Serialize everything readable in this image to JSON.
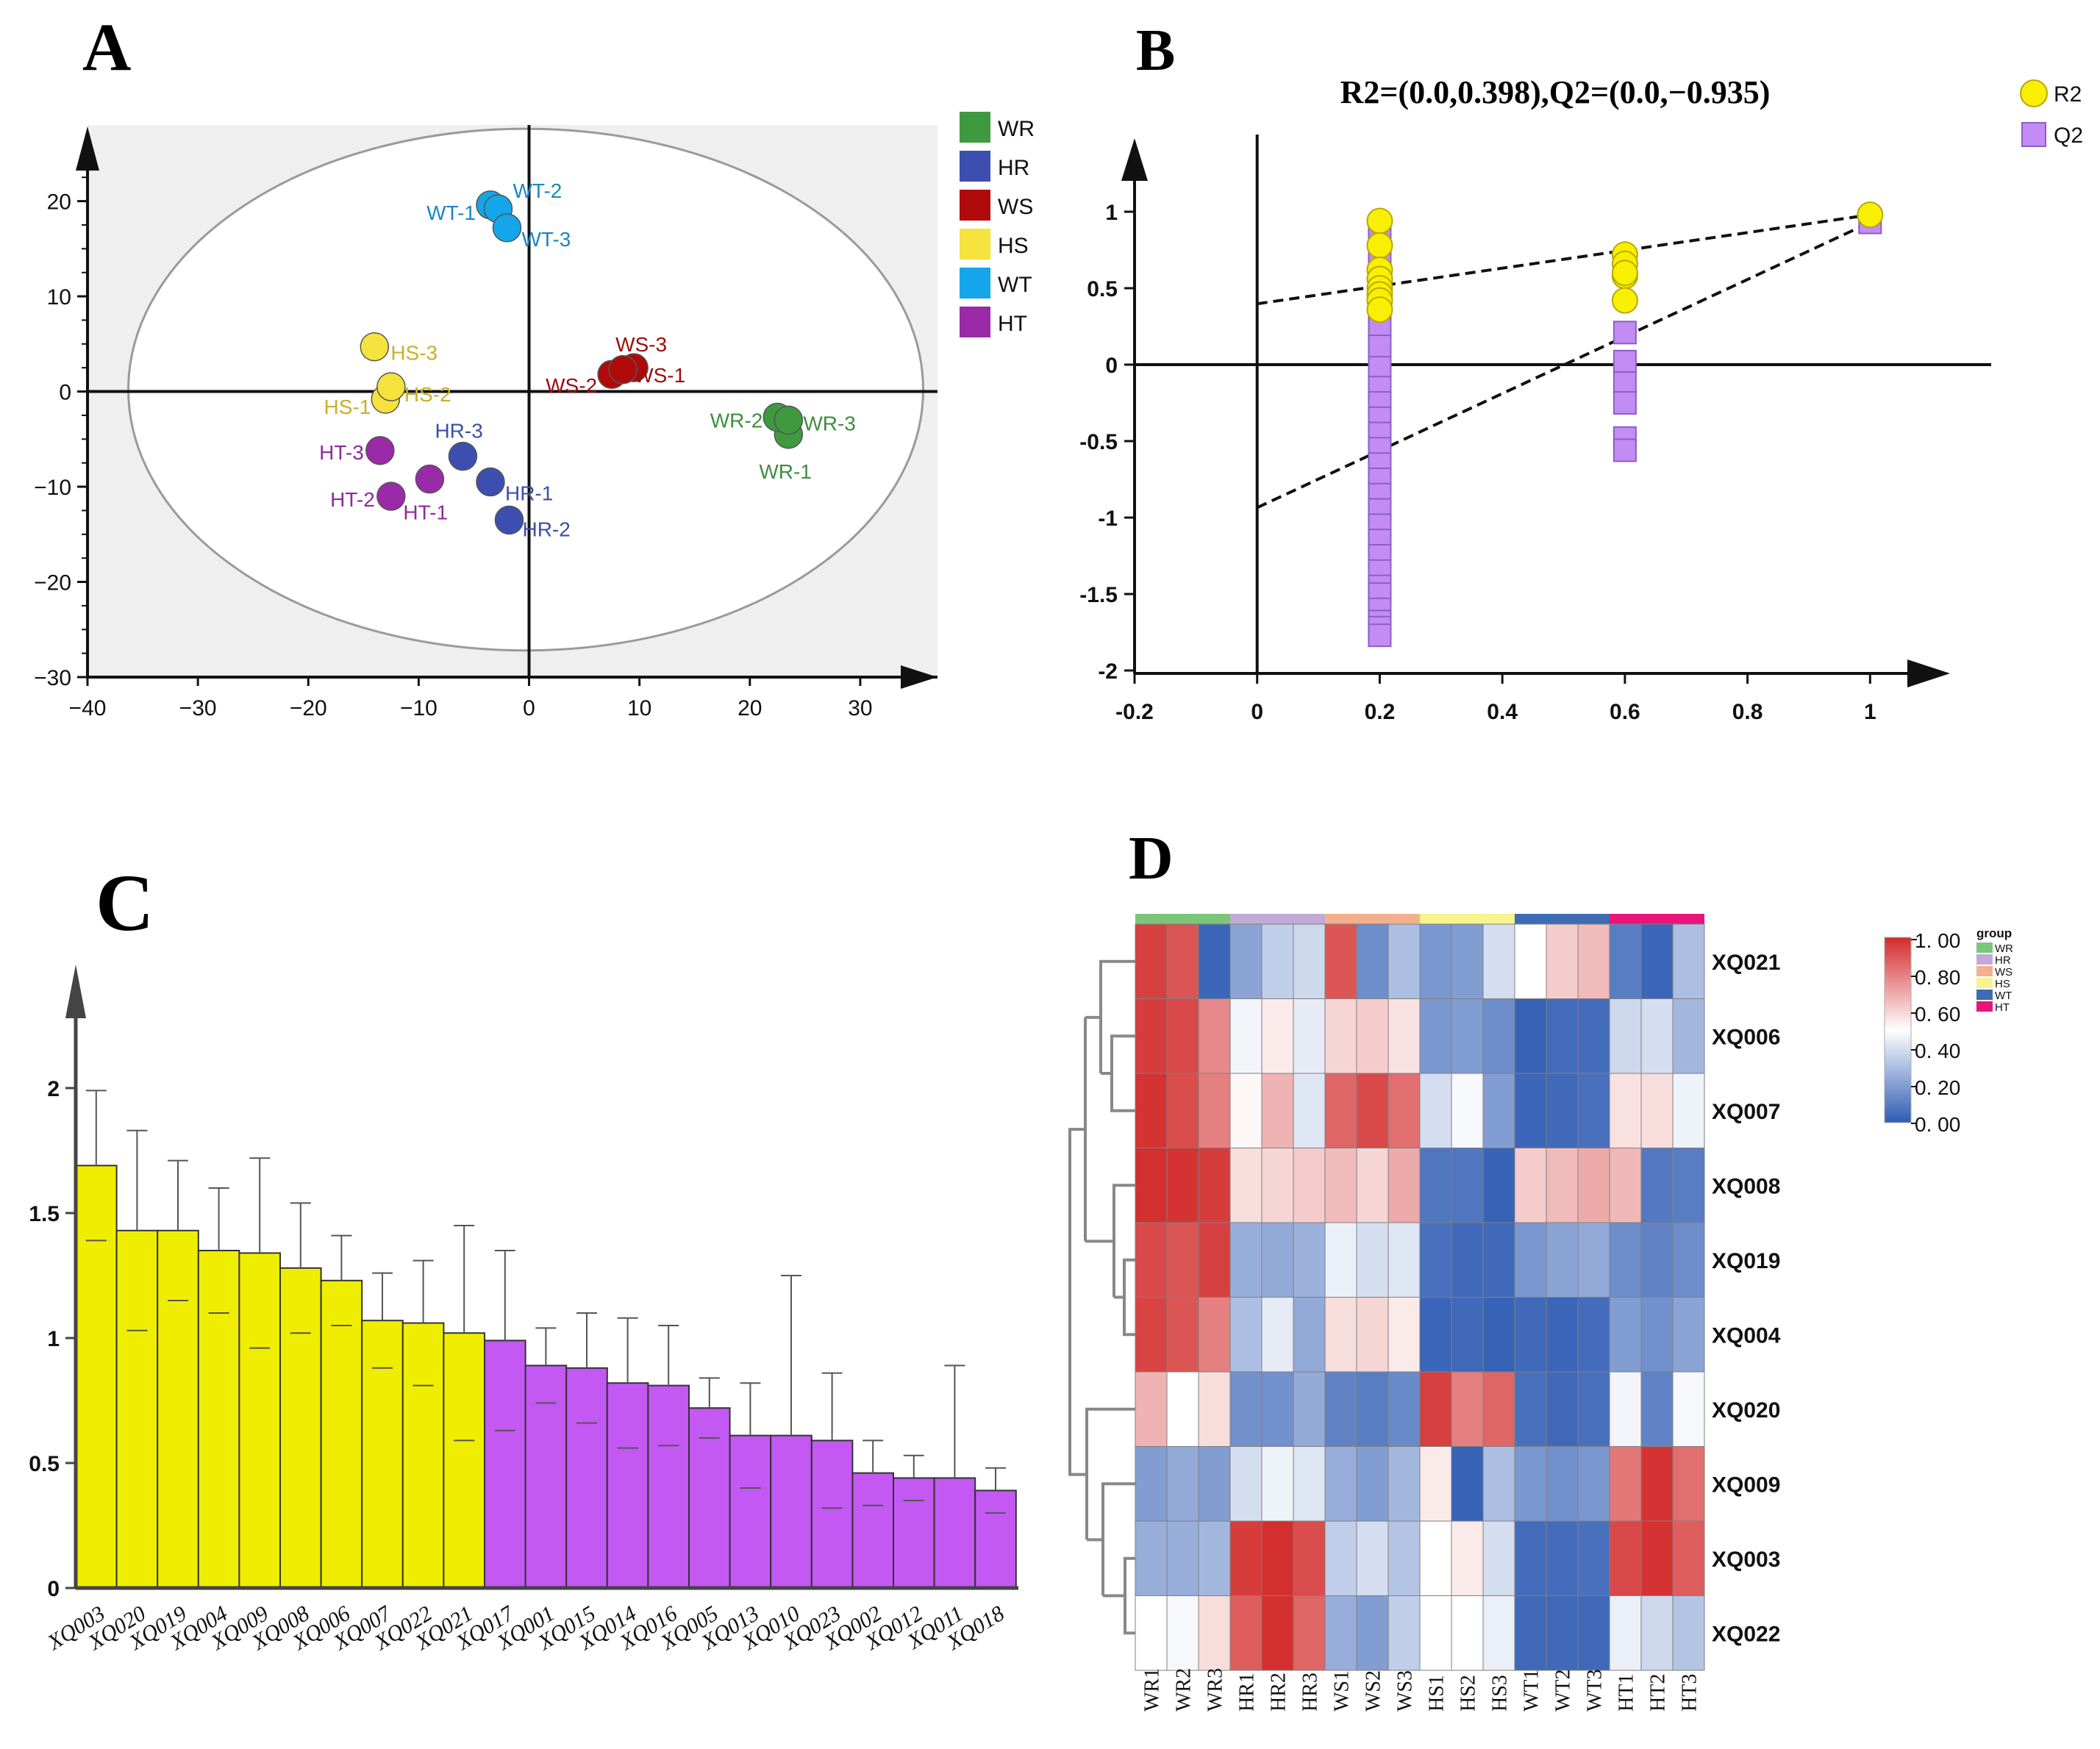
{
  "chart_data": [
    {
      "panel": "A",
      "type": "scatter",
      "xlim": [
        -40,
        37
      ],
      "ylim": [
        -30,
        28
      ],
      "xticks": [
        -40,
        -30,
        -20,
        -10,
        0,
        10,
        20,
        30
      ],
      "yticks": [
        -30,
        -20,
        -10,
        0,
        10,
        20
      ],
      "xtick_labels": [
        "−40",
        "−30",
        "−20",
        "−10",
        "0",
        "10",
        "20",
        "30"
      ],
      "ytick_labels": [
        "−30",
        "−20",
        "−10",
        "0",
        "10",
        "20"
      ],
      "legend": [
        {
          "name": "WR",
          "color": "#3f9a3f"
        },
        {
          "name": "HR",
          "color": "#3c4fb0"
        },
        {
          "name": "WS",
          "color": "#b00a0a"
        },
        {
          "name": "HS",
          "color": "#f6e23c"
        },
        {
          "name": "WT",
          "color": "#14a5ea"
        },
        {
          "name": "HT",
          "color": "#9a2aa8"
        }
      ],
      "ellipse": {
        "cx": -0.3,
        "cy": 0.2,
        "rx": 36,
        "ry": 27.4
      },
      "points": [
        {
          "label": "WT-1",
          "x": -3.5,
          "y": 19.6,
          "group": "WT",
          "label_color": "#1a86c5"
        },
        {
          "label": "WT-2",
          "x": -2.8,
          "y": 19.2,
          "group": "WT",
          "label_color": "#1a86c5"
        },
        {
          "label": "WT-3",
          "x": -2.0,
          "y": 17.2,
          "group": "WT",
          "label_color": "#1a86c5"
        },
        {
          "label": "WS-1",
          "x": 9.5,
          "y": 2.5,
          "group": "WS",
          "label_color": "#9d0b0b"
        },
        {
          "label": "WS-2",
          "x": 7.5,
          "y": 1.8,
          "group": "WS",
          "label_color": "#9d0b0b"
        },
        {
          "label": "WS-3",
          "x": 8.5,
          "y": 2.3,
          "group": "WS",
          "label_color": "#9d0b0b"
        },
        {
          "label": "HS-1",
          "x": -13.0,
          "y": -0.8,
          "group": "HS",
          "label_color": "#c9b02a"
        },
        {
          "label": "HS-2",
          "x": -12.5,
          "y": 0.5,
          "group": "HS",
          "label_color": "#c9b02a"
        },
        {
          "label": "HS-3",
          "x": -14.0,
          "y": 4.7,
          "group": "HS",
          "label_color": "#c9b02a"
        },
        {
          "label": "WR-1",
          "x": 23.5,
          "y": -4.5,
          "group": "WR",
          "label_color": "#3e8e3e"
        },
        {
          "label": "WR-2",
          "x": 22.5,
          "y": -2.7,
          "group": "WR",
          "label_color": "#3e8e3e"
        },
        {
          "label": "WR-3",
          "x": 23.5,
          "y": -3.0,
          "group": "WR",
          "label_color": "#3e8e3e"
        },
        {
          "label": "HR-1",
          "x": -3.5,
          "y": -9.5,
          "group": "HR",
          "label_color": "#3c4fa8"
        },
        {
          "label": "HR-2",
          "x": -1.8,
          "y": -13.5,
          "group": "HR",
          "label_color": "#3c4fa8"
        },
        {
          "label": "HR-3",
          "x": -6.0,
          "y": -6.8,
          "group": "HR",
          "label_color": "#3c4fa8"
        },
        {
          "label": "HT-1",
          "x": -9.0,
          "y": -9.2,
          "group": "HT",
          "label_color": "#8f2a9e"
        },
        {
          "label": "HT-2",
          "x": -12.5,
          "y": -11.0,
          "group": "HT",
          "label_color": "#8f2a9e"
        },
        {
          "label": "HT-3",
          "x": -13.5,
          "y": -6.2,
          "group": "HT",
          "label_color": "#8f2a9e"
        }
      ]
    },
    {
      "panel": "B",
      "type": "scatter",
      "title": "R2=(0.0,0.398),Q2=(0.0,−0.935)",
      "xlim": [
        -0.2,
        1.2
      ],
      "ylim": [
        -2,
        1.4
      ],
      "xticks": [
        -0.2,
        0,
        0.2,
        0.4,
        0.6,
        0.8,
        1
      ],
      "yticks": [
        -2,
        -1.5,
        -1,
        -0.5,
        0,
        0.5,
        1
      ],
      "xtick_labels": [
        "-0.2",
        "0",
        "0.2",
        "0.4",
        "0.6",
        "0.8",
        "1"
      ],
      "ytick_labels": [
        "-2",
        "-1.5",
        "-1",
        "-0.5",
        "0",
        "0.5",
        "1"
      ],
      "legend": [
        {
          "name": "R2",
          "color": "#f8f000"
        },
        {
          "name": "Q2",
          "color": "#c38bf4"
        }
      ],
      "R2": {
        "x": [
          0.2,
          0.2,
          0.2,
          0.2,
          0.2,
          0.2,
          0.2,
          0.2,
          0.6,
          0.6,
          0.6,
          0.6,
          0.6,
          1.0
        ],
        "y": [
          0.94,
          0.78,
          0.62,
          0.56,
          0.5,
          0.46,
          0.42,
          0.36,
          0.72,
          0.66,
          0.58,
          0.42,
          0.6,
          0.98
        ]
      },
      "Q2": {
        "x": [
          0.2,
          0.2,
          0.2,
          0.2,
          0.2,
          0.2,
          0.2,
          0.2,
          0.2,
          0.2,
          0.2,
          0.2,
          0.2,
          0.2,
          0.2,
          0.2,
          0.2,
          0.2,
          0.2,
          0.2,
          0.2,
          0.2,
          0.2,
          0.2,
          0.2,
          0.2,
          0.6,
          0.6,
          0.6,
          0.6,
          0.6,
          0.6,
          1.0
        ],
        "y": [
          0.86,
          0.72,
          0.55,
          0.4,
          0.25,
          0.12,
          -0.02,
          -0.15,
          -0.25,
          -0.35,
          -0.45,
          -0.55,
          -0.65,
          -0.75,
          -0.85,
          -0.95,
          -1.05,
          -1.15,
          -1.25,
          -1.35,
          -1.45,
          -1.5,
          -1.6,
          -1.68,
          -1.72,
          -1.77,
          0.21,
          0.02,
          -0.12,
          -0.25,
          -0.48,
          -0.56,
          0.93
        ]
      },
      "regression": [
        {
          "name": "R2",
          "x": [
            0,
            1
          ],
          "y": [
            0.398,
            0.98
          ]
        },
        {
          "name": "Q2",
          "x": [
            0,
            1
          ],
          "y": [
            -0.935,
            0.93
          ]
        }
      ]
    },
    {
      "panel": "C",
      "type": "bar",
      "ylim": [
        0,
        2.4
      ],
      "yticks": [
        0,
        0.5,
        1,
        1.5,
        2
      ],
      "ytick_labels": [
        "0",
        "0.5",
        "1",
        "1.5",
        "2"
      ],
      "colors": {
        "yellow": "#f0ee00",
        "purple": "#c358f3"
      },
      "categories": [
        "XQ003",
        "XQ020",
        "XQ019",
        "XQ004",
        "XQ009",
        "XQ008",
        "XQ006",
        "XQ007",
        "XQ022",
        "XQ021",
        "XQ017",
        "XQ001",
        "XQ015",
        "XQ014",
        "XQ016",
        "XQ005",
        "XQ013",
        "XQ010",
        "XQ023",
        "XQ002",
        "XQ012",
        "XQ011",
        "XQ018"
      ],
      "values": [
        1.69,
        1.43,
        1.43,
        1.35,
        1.34,
        1.28,
        1.23,
        1.07,
        1.06,
        1.02,
        0.99,
        0.89,
        0.88,
        0.82,
        0.81,
        0.72,
        0.61,
        0.61,
        0.59,
        0.46,
        0.44,
        0.44,
        0.39
      ],
      "errors": [
        0.3,
        0.4,
        0.28,
        0.25,
        0.38,
        0.26,
        0.18,
        0.19,
        0.25,
        0.43,
        0.36,
        0.15,
        0.22,
        0.26,
        0.24,
        0.12,
        0.21,
        0.64,
        0.27,
        0.13,
        0.09,
        0.45,
        0.09
      ],
      "bar_color_groups": [
        "yellow",
        "yellow",
        "yellow",
        "yellow",
        "yellow",
        "yellow",
        "yellow",
        "yellow",
        "yellow",
        "yellow",
        "purple",
        "purple",
        "purple",
        "purple",
        "purple",
        "purple",
        "purple",
        "purple",
        "purple",
        "purple",
        "purple",
        "purple",
        "purple"
      ]
    },
    {
      "panel": "D",
      "type": "heatmap",
      "columns": [
        "WR1",
        "WR2",
        "WR3",
        "HR1",
        "HR2",
        "HR3",
        "WS1",
        "WS2",
        "WS3",
        "HS1",
        "HS2",
        "HS3",
        "WT1",
        "WT2",
        "WT3",
        "HT1",
        "HT2",
        "HT3"
      ],
      "rows": [
        "XQ021",
        "XQ006",
        "XQ007",
        "XQ008",
        "XQ019",
        "XQ004",
        "XQ020",
        "XQ009",
        "XQ003",
        "XQ022"
      ],
      "values": [
        [
          0.95,
          0.9,
          0.03,
          0.22,
          0.35,
          0.38,
          0.9,
          0.15,
          0.3,
          0.18,
          0.2,
          0.4,
          0.5,
          0.62,
          0.66,
          0.1,
          0.03,
          0.3
        ],
        [
          0.96,
          0.93,
          0.78,
          0.47,
          0.55,
          0.44,
          0.6,
          0.62,
          0.57,
          0.18,
          0.2,
          0.15,
          0.02,
          0.05,
          0.05,
          0.38,
          0.4,
          0.28
        ],
        [
          0.98,
          0.92,
          0.8,
          0.52,
          0.68,
          0.42,
          0.86,
          0.93,
          0.84,
          0.4,
          0.48,
          0.2,
          0.03,
          0.04,
          0.06,
          0.57,
          0.58,
          0.46
        ],
        [
          0.99,
          0.98,
          0.96,
          0.58,
          0.6,
          0.62,
          0.66,
          0.6,
          0.7,
          0.08,
          0.08,
          0.02,
          0.62,
          0.66,
          0.7,
          0.67,
          0.09,
          0.1
        ],
        [
          0.93,
          0.9,
          0.95,
          0.25,
          0.24,
          0.26,
          0.45,
          0.4,
          0.42,
          0.06,
          0.04,
          0.04,
          0.18,
          0.22,
          0.24,
          0.15,
          0.12,
          0.15
        ],
        [
          0.94,
          0.9,
          0.8,
          0.3,
          0.44,
          0.24,
          0.58,
          0.6,
          0.55,
          0.03,
          0.04,
          0.02,
          0.04,
          0.03,
          0.05,
          0.2,
          0.16,
          0.22
        ],
        [
          0.68,
          0.5,
          0.58,
          0.16,
          0.16,
          0.24,
          0.12,
          0.1,
          0.14,
          0.95,
          0.8,
          0.86,
          0.06,
          0.04,
          0.06,
          0.47,
          0.12,
          0.48
        ],
        [
          0.2,
          0.24,
          0.2,
          0.4,
          0.46,
          0.42,
          0.25,
          0.2,
          0.28,
          0.55,
          0.02,
          0.3,
          0.18,
          0.16,
          0.18,
          0.82,
          0.98,
          0.84
        ],
        [
          0.25,
          0.25,
          0.28,
          0.96,
          0.99,
          0.92,
          0.35,
          0.4,
          0.32,
          0.5,
          0.55,
          0.4,
          0.05,
          0.05,
          0.06,
          0.93,
          0.98,
          0.88
        ],
        [
          0.5,
          0.48,
          0.58,
          0.88,
          0.99,
          0.86,
          0.25,
          0.2,
          0.35,
          0.5,
          0.5,
          0.45,
          0.04,
          0.04,
          0.04,
          0.45,
          0.38,
          0.32
        ]
      ],
      "group_bar": [
        {
          "name": "WR",
          "color": "#7cc67a"
        },
        {
          "name": "HR",
          "color": "#c2a9d6"
        },
        {
          "name": "WS",
          "color": "#f3b08c"
        },
        {
          "name": "HS",
          "color": "#f6f48c"
        },
        {
          "name": "WT",
          "color": "#3e6cb4"
        },
        {
          "name": "HT",
          "color": "#e9157a"
        }
      ],
      "colorbar": {
        "ticks": [
          "1. 00",
          "0. 80",
          "0. 60",
          "0. 40",
          "0. 20",
          "0. 00"
        ],
        "low": "#2f5cb4",
        "mid": "#ffffff",
        "high": "#d32b2b"
      },
      "legend_title": "group"
    }
  ],
  "panel_labels": [
    "A",
    "B",
    "C",
    "D"
  ]
}
